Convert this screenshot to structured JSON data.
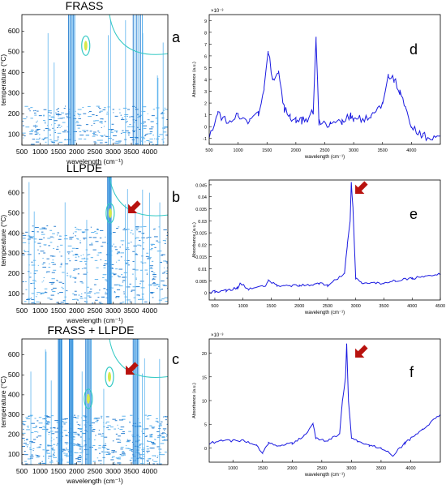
{
  "figure": {
    "panels": [
      {
        "id": "a",
        "label": "a",
        "title": "FRASS",
        "kind": "contour",
        "ylabel": "temperature (°C)",
        "xlabel": "wavelength (cm⁻¹)",
        "xticks": [
          "500",
          "1000",
          "1500",
          "2000",
          "2500",
          "3000",
          "3500",
          "4000"
        ],
        "yticks": [
          "100",
          "200",
          "300",
          "400",
          "500",
          "600"
        ],
        "xlim": [
          500,
          4500
        ],
        "ylim": [
          50,
          680
        ]
      },
      {
        "id": "d",
        "label": "d",
        "title": "",
        "kind": "line",
        "ylabel": "Absorbance (a.u.)",
        "xlabel": "wavelength (cm⁻¹)",
        "exp": "×10⁻³",
        "xticks": [
          "500",
          "1000",
          "1500",
          "2000",
          "2500",
          "3000",
          "3500",
          "4000"
        ],
        "yticks": [
          "-1",
          "0",
          "1",
          "2",
          "3",
          "4",
          "5",
          "6",
          "7",
          "8",
          "9"
        ],
        "xlim": [
          500,
          4500
        ],
        "ylim": [
          -1.5,
          9.5
        ]
      },
      {
        "id": "b",
        "label": "b",
        "title": "LLPDE",
        "kind": "contour",
        "ylabel": "temperature (°C)",
        "xlabel": "wavelength (cm⁻¹)",
        "xticks": [
          "500",
          "1000",
          "1500",
          "2000",
          "2500",
          "3000",
          "3500",
          "4000"
        ],
        "yticks": [
          "100",
          "200",
          "300",
          "400",
          "500",
          "600"
        ],
        "xlim": [
          500,
          4500
        ],
        "ylim": [
          50,
          680
        ]
      },
      {
        "id": "e",
        "label": "e",
        "title": "",
        "kind": "line",
        "ylabel": "Absorbance (a.u.)",
        "xlabel": "wavelength (cm⁻¹)",
        "exp": "",
        "xticks": [
          "500",
          "1000",
          "1500",
          "2000",
          "2500",
          "3000",
          "3500",
          "4000",
          "4500"
        ],
        "yticks": [
          "0",
          "0.005",
          "0.01",
          "0.015",
          "0.02",
          "0.025",
          "0.03",
          "0.035",
          "0.04",
          "0.045"
        ],
        "xlim": [
          400,
          4500
        ],
        "ylim": [
          -0.003,
          0.047
        ]
      },
      {
        "id": "c",
        "label": "c",
        "title": "FRASS + LLPDE",
        "kind": "contour",
        "ylabel": "temperature (°C)",
        "xlabel": "wavelength (cm⁻¹)",
        "xticks": [
          "500",
          "1000",
          "1500",
          "2000",
          "2500",
          "3000",
          "3500",
          "4000"
        ],
        "yticks": [
          "100",
          "200",
          "300",
          "400",
          "500",
          "600"
        ],
        "xlim": [
          500,
          4500
        ],
        "ylim": [
          50,
          680
        ]
      },
      {
        "id": "f",
        "label": "f",
        "title": "",
        "kind": "line",
        "ylabel": "Absorbance (a.u.)",
        "xlabel": "wavelength (cm⁻¹)",
        "exp": "×10⁻³",
        "xticks": [
          "1000",
          "1500",
          "2000",
          "2500",
          "3000",
          "3500",
          "4000"
        ],
        "yticks": [
          "0",
          "5",
          "10",
          "15",
          "20"
        ],
        "xlim": [
          600,
          4500
        ],
        "ylim": [
          -3,
          23
        ]
      }
    ]
  },
  "colors": {
    "line": "#1a1ae0",
    "contour_light": "#5fb4ee",
    "contour_dark": "#2a7fd0",
    "contour_cyan": "#33c9c4",
    "contour_yellow": "#d8e94a",
    "arrow": "#b8120e"
  },
  "chart_data": [
    {
      "panel": "a",
      "type": "heatmap",
      "title": "FRASS",
      "xlabel": "wavelength (cm⁻¹)",
      "ylabel": "temperature (°C)",
      "xlim": [
        500,
        4500
      ],
      "ylim": [
        50,
        680
      ],
      "hot_regions_x": [
        [
          1780,
          1950
        ],
        [
          3550,
          3800
        ]
      ],
      "peak_spots": [
        {
          "x": 2250,
          "y": 530
        }
      ]
    },
    {
      "panel": "d",
      "type": "line",
      "xlabel": "wavelength (cm⁻¹)",
      "ylabel": "Absorbance (a.u.)",
      "ylim": [
        -1.5,
        9.5
      ],
      "y_multiplier": "×10⁻³",
      "x": [
        500,
        650,
        800,
        1000,
        1200,
        1350,
        1450,
        1520,
        1600,
        1700,
        1800,
        1900,
        2000,
        2100,
        2200,
        2300,
        2350,
        2400,
        2600,
        2800,
        2950,
        3000,
        3100,
        3300,
        3500,
        3600,
        3700,
        3800,
        3900,
        4000,
        4200,
        4500
      ],
      "y": [
        -0.8,
        1.0,
        0.5,
        1.0,
        0.5,
        1.0,
        3.0,
        6.5,
        4.0,
        4.5,
        1.5,
        0.8,
        0.5,
        0.5,
        0.7,
        1.2,
        7.5,
        0.3,
        0.2,
        0.5,
        1.0,
        0.5,
        0.7,
        0.8,
        2.0,
        4.5,
        4.0,
        3.0,
        1.5,
        0.0,
        -0.8,
        -1.0
      ]
    },
    {
      "panel": "b",
      "type": "heatmap",
      "title": "LLPDE",
      "xlabel": "wavelength (cm⁻¹)",
      "ylabel": "temperature (°C)",
      "xlim": [
        500,
        4500
      ],
      "ylim": [
        50,
        680
      ],
      "hot_regions_x": [
        [
          2850,
          2950
        ]
      ],
      "peak_spots": [
        {
          "x": 2920,
          "y": 500
        }
      ]
    },
    {
      "panel": "e",
      "type": "line",
      "xlabel": "wavelength (cm⁻¹)",
      "ylabel": "Absorbance (a.u.)",
      "ylim": [
        -0.003,
        0.047
      ],
      "x": [
        400,
        500,
        700,
        900,
        950,
        1100,
        1400,
        1450,
        1600,
        2000,
        2300,
        2350,
        2500,
        2800,
        2850,
        2900,
        2920,
        2950,
        3000,
        3100,
        3500,
        3700,
        4000,
        4500
      ],
      "y": [
        0.0,
        0.0005,
        0.001,
        0.002,
        0.004,
        0.0015,
        0.003,
        0.005,
        0.003,
        0.003,
        0.0035,
        0.004,
        0.003,
        0.008,
        0.02,
        0.03,
        0.046,
        0.035,
        0.006,
        0.004,
        0.004,
        0.005,
        0.006,
        0.008
      ]
    },
    {
      "panel": "c",
      "type": "heatmap",
      "title": "FRASS + LLPDE",
      "xlabel": "wavelength (cm⁻¹)",
      "ylabel": "temperature (°C)",
      "xlim": [
        500,
        4500
      ],
      "ylim": [
        50,
        680
      ],
      "hot_regions_x": [
        [
          1500,
          1600
        ],
        [
          1800,
          1900
        ],
        [
          2250,
          2400
        ],
        [
          3550,
          3700
        ]
      ],
      "peak_spots": [
        {
          "x": 2320,
          "y": 380
        },
        {
          "x": 2900,
          "y": 490
        }
      ]
    },
    {
      "panel": "f",
      "type": "line",
      "xlabel": "wavelength (cm⁻¹)",
      "ylabel": "Absorbance (a.u.)",
      "ylim": [
        -3,
        23
      ],
      "y_multiplier": "×10⁻³",
      "x": [
        600,
        800,
        1000,
        1200,
        1400,
        1500,
        1600,
        1800,
        2000,
        2200,
        2350,
        2400,
        2600,
        2800,
        2850,
        2900,
        2920,
        2950,
        3000,
        3100,
        3300,
        3500,
        3700,
        3900,
        4200,
        4500
      ],
      "y": [
        1.0,
        1.5,
        1.5,
        1.5,
        0.5,
        -1.0,
        1.0,
        0.5,
        1.0,
        2.5,
        5.0,
        2.0,
        1.5,
        3.0,
        10.0,
        15.0,
        22.0,
        10.0,
        2.0,
        1.5,
        0.5,
        0.0,
        -1.5,
        1.0,
        4.0,
        7.0
      ]
    }
  ]
}
